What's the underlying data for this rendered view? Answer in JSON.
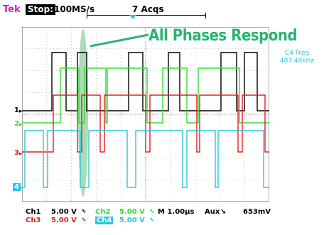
{
  "header": {
    "brand": "Tek",
    "state": "Stop:",
    "sample_rate": "100MS/s",
    "acquisitions": "7 Acqs"
  },
  "annotation": "All Phases Respond",
  "measurement": {
    "label": "C4 Freq",
    "value": "487.48kHz"
  },
  "channel_markers": {
    "ch1": "1",
    "ch2": "2",
    "ch3": "3",
    "ch4": "4"
  },
  "footer": {
    "ch1_name": "Ch1",
    "ch1_scale": "5.00 V",
    "ch2_name": "Ch2",
    "ch2_scale": "5.00 V",
    "ch3_name": "Ch3",
    "ch3_scale": "5.00 V",
    "ch4_name": "Ch4",
    "ch4_scale": "5.00 V",
    "timebase": "M 1.00µs",
    "trigger_source": "Aux",
    "trigger_level": "653mV"
  },
  "colors": {
    "ch1": "#000000",
    "ch2": "#33dd33",
    "ch3": "#e02020",
    "ch4": "#29c7d8",
    "annotation": "#29b573",
    "highlight": "#8fcf9f"
  }
}
